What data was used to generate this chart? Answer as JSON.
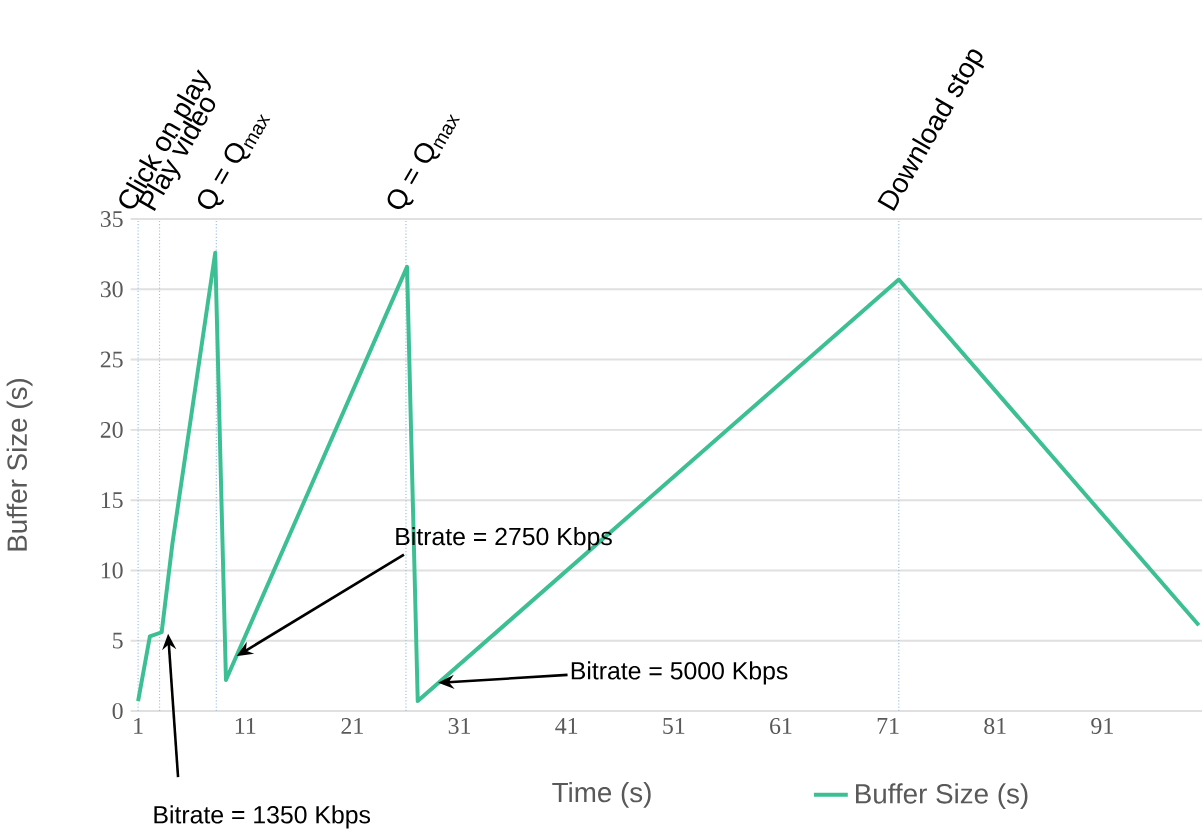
{
  "chart_data": {
    "type": "line",
    "xlabel": "Time (s)",
    "ylabel": "Buffer Size (s)",
    "x": [
      1,
      2.1,
      3.2,
      4.2,
      8.2,
      9.2,
      26.1,
      27.1,
      72,
      100
    ],
    "series": [
      {
        "name": "Buffer Size (s)",
        "color": "#3dbf94",
        "values": [
          0.7,
          5.3,
          5.6,
          11.9,
          32.6,
          2.2,
          31.6,
          0.7,
          30.7,
          6.1
        ]
      }
    ],
    "xlim": [
      0.3,
      100.3
    ],
    "xticks": [
      1,
      11,
      21,
      31,
      41,
      51,
      61,
      71,
      81,
      91
    ],
    "ylim": [
      0,
      35
    ],
    "yticks": [
      0,
      5,
      10,
      15,
      20,
      25,
      30,
      35
    ],
    "ref_lines": [
      {
        "axis": "x",
        "value": 1,
        "label": "Click on play",
        "color": "#9dc3e6",
        "line_style": "dotted"
      },
      {
        "axis": "x",
        "value": 3,
        "label": "Play video",
        "color": "#9dc3e6",
        "line_style": "dotted"
      },
      {
        "axis": "x",
        "value": 8.3,
        "label": "Q = Q$_{max}$",
        "color": "#9dc3e6",
        "line_style": "dotted"
      },
      {
        "axis": "x",
        "value": 26,
        "label": "Q = Q$_{max}$",
        "color": "#9dc3e6",
        "line_style": "dotted"
      },
      {
        "axis": "x",
        "value": 72,
        "label": "Download stop",
        "color": "#9dc3e6",
        "line_style": "dotted"
      }
    ],
    "annotations": [
      {
        "text": "Bitrate = 1350 Kbps",
        "x": 3.8,
        "y": 5.5
      },
      {
        "text": "Bitrate = 2750 Kbps",
        "x": 10.2,
        "y": 3.9
      },
      {
        "text": "Bitrate = 5000 Kbps",
        "x": 29,
        "y": 2.0
      }
    ],
    "grid": "y",
    "legend": "bottom",
    "marker": "none",
    "line_style": "solid"
  }
}
